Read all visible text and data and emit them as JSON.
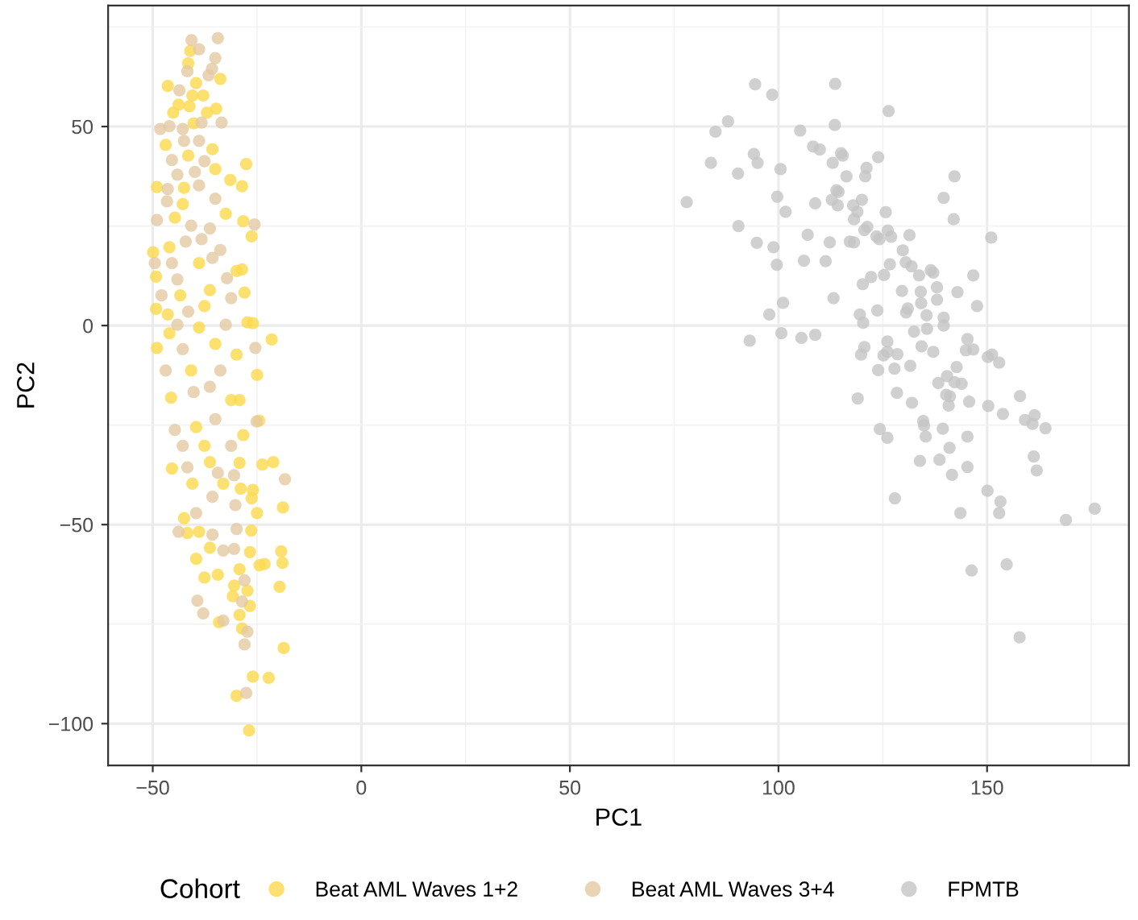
{
  "chart_data": {
    "type": "scatter",
    "xlabel": "PC1",
    "ylabel": "PC2",
    "legend_title": "Cohort",
    "legend": "bottom",
    "grid": true,
    "marker": "circle",
    "xlim": [
      -60.7,
      184
    ],
    "ylim": [
      -110.5,
      80.4
    ],
    "xticks": [
      {
        "value": -50,
        "label": "−50"
      },
      0,
      50,
      100,
      150
    ],
    "yticks": [
      {
        "value": -100,
        "label": "−100"
      },
      {
        "value": -50,
        "label": "−50"
      },
      0,
      50
    ],
    "series": [
      {
        "name": "Beat AML Waves 1+2",
        "color": "#fcd94c",
        "x": [
          -41.0,
          -41.5,
          -33.8,
          -46.4,
          -39.6,
          -37.9,
          -40.5,
          -43.8,
          -45.1,
          -41.2,
          -37.0,
          -34.8,
          -40.2,
          -46.9,
          -35.7,
          -41.5,
          -27.6,
          -35.0,
          -49.0,
          -42.5,
          -31.4,
          -28.6,
          -42.8,
          -32.5,
          -44.7,
          -28.3,
          -26.3,
          -49.9,
          -46.0,
          -38.9,
          -49.2,
          -29.9,
          -28.6,
          -43.4,
          -36.3,
          -28.0,
          -49.2,
          -46.4,
          -37.6,
          -27.3,
          -26.0,
          -21.5,
          -46.0,
          -38.9,
          -49.0,
          -35.0,
          -29.9,
          -40.8,
          -25.0,
          -45.6,
          -31.2,
          -29.2,
          -39.6,
          -28.3,
          -24.5,
          -37.6,
          -45.4,
          -36.3,
          -29.2,
          -23.7,
          -21.1,
          -40.5,
          -33.1,
          -28.9,
          -26.0,
          -26.3,
          -18.8,
          -42.5,
          -25.0,
          -41.7,
          -38.9,
          -26.4,
          -36.3,
          -26.7,
          -19.2,
          -39.6,
          -24.4,
          -23.2,
          -18.9,
          -37.6,
          -34.4,
          -29.2,
          -19.6,
          -30.5,
          -27.3,
          -30.8,
          -26.7,
          -34.1,
          -29.2,
          -28.6,
          -18.6,
          -26.0,
          -22.2,
          -29.9,
          -26.9
        ],
        "values": [
          69.0,
          65.9,
          62.0,
          60.2,
          60.9,
          57.8,
          57.8,
          55.5,
          53.5,
          55.1,
          53.5,
          54.5,
          50.8,
          45.4,
          44.3,
          42.7,
          40.6,
          39.3,
          34.8,
          34.6,
          36.6,
          35.0,
          30.5,
          28.1,
          27.1,
          26.2,
          22.4,
          18.4,
          19.7,
          15.7,
          12.3,
          13.7,
          14.1,
          7.6,
          8.9,
          8.3,
          4.2,
          2.8,
          4.9,
          0.8,
          0.6,
          -3.5,
          -1.9,
          -0.5,
          -5.6,
          -4.6,
          -7.3,
          -11.3,
          -12.4,
          -18.1,
          -18.7,
          -18.7,
          -25.5,
          -27.5,
          -23.9,
          -30.2,
          -35.9,
          -34.3,
          -34.5,
          -34.9,
          -34.3,
          -39.7,
          -39.7,
          -41.0,
          -41.3,
          -43.4,
          -45.7,
          -48.4,
          -47.1,
          -52.1,
          -51.8,
          -51.5,
          -55.8,
          -56.9,
          -56.7,
          -58.6,
          -60.2,
          -59.9,
          -59.6,
          -63.3,
          -62.6,
          -61.2,
          -65.6,
          -65.3,
          -66.6,
          -68.0,
          -70.4,
          -74.5,
          -72.7,
          -76.1,
          -81.0,
          -88.2,
          -88.5,
          -93.0,
          -101.7
        ]
      },
      {
        "name": "Beat AML Waves 3+4",
        "color": "#e3c9a2",
        "x": [
          -40.7,
          -34.4,
          -38.9,
          -35.0,
          -35.8,
          -41.7,
          -36.6,
          -43.6,
          -33.5,
          -48.2,
          -46.0,
          -42.8,
          -38.3,
          -42.5,
          -38.9,
          -45.4,
          -37.6,
          -44.1,
          -39.9,
          -46.4,
          -38.9,
          -46.6,
          -35.0,
          -49.0,
          -40.8,
          -36.3,
          -25.6,
          -42.1,
          -38.3,
          -33.8,
          -49.5,
          -45.4,
          -35.7,
          -44.1,
          -32.2,
          -47.9,
          -31.2,
          -41.5,
          -44.1,
          -32.5,
          -42.8,
          -25.4,
          -46.9,
          -33.8,
          -40.2,
          -36.3,
          -44.7,
          -35.0,
          -25.1,
          -42.8,
          -31.2,
          -41.7,
          -34.4,
          -18.3,
          -30.5,
          -39.6,
          -35.7,
          -30.2,
          -43.8,
          -35.7,
          -29.9,
          -33.1,
          -30.5,
          -28.0,
          -39.3,
          -28.6,
          -37.9,
          -33.1,
          -27.3,
          -28.0,
          -27.6
        ],
        "values": [
          71.7,
          72.2,
          69.4,
          67.2,
          64.5,
          63.9,
          62.9,
          59.1,
          51.0,
          49.4,
          50.1,
          49.4,
          51.0,
          46.4,
          46.4,
          41.6,
          41.3,
          37.9,
          38.6,
          34.3,
          35.2,
          31.2,
          31.9,
          26.5,
          25.1,
          24.4,
          25.4,
          21.1,
          21.7,
          19.0,
          15.7,
          15.7,
          17.0,
          11.6,
          11.9,
          7.6,
          6.9,
          3.5,
          0.2,
          0.2,
          -5.9,
          -5.6,
          -11.3,
          -11.3,
          -16.7,
          -15.4,
          -26.2,
          -23.5,
          -24.1,
          -30.2,
          -30.2,
          -35.6,
          -37.0,
          -38.6,
          -37.6,
          -47.1,
          -43.0,
          -45.1,
          -51.8,
          -52.5,
          -51.1,
          -56.5,
          -56.1,
          -64.0,
          -69.1,
          -69.3,
          -72.3,
          -74.1,
          -76.9,
          -80.1,
          -92.3
        ]
      },
      {
        "name": "FPMTB",
        "color": "#c4c4c4",
        "x": [
          94.4,
          98.5,
          113.6,
          126.4,
          87.9,
          84.9,
          105.2,
          113.5,
          94.1,
          83.8,
          95.0,
          90.3,
          100.5,
          108.3,
          109.9,
          115.0,
          115.4,
          113.0,
          123.9,
          121.1,
          120.8,
          116.3,
          142.2,
          78.0,
          99.7,
          101.7,
          108.8,
          113.9,
          114.4,
          112.8,
          114.2,
          117.9,
          120.0,
          118.9,
          118.1,
          125.7,
          139.6,
          142.0,
          90.4,
          94.8,
          98.8,
          99.6,
          107.0,
          106.1,
          111.3,
          112.3,
          117.1,
          118.1,
          120.6,
          121.3,
          123.5,
          124.2,
          126.2,
          127.0,
          131.4,
          151.0,
          129.8,
          130.5,
          131.9,
          126.7,
          133.7,
          136.5,
          137.1,
          122.2,
          125.3,
          120.2,
          146.7,
          138.0,
          129.6,
          134.1,
          142.9,
          113.2,
          134.2,
          138.0,
          147.6,
          131.0,
          130.6,
          123.7,
          135.5,
          139.6,
          119.5,
          120.3,
          97.8,
          101.1,
          93.1,
          100.7,
          105.5,
          108.8,
          132.5,
          135.6,
          139.6,
          126.1,
          145.3,
          120.6,
          119.8,
          125.2,
          126.1,
          128.5,
          123.9,
          127.8,
          131.6,
          134.3,
          137.1,
          144.9,
          146.7,
          150.2,
          151.2,
          152.9,
          142.7,
          140.4,
          138.3,
          142.2,
          143.9,
          140.2,
          141.1,
          140.8,
          145.7,
          150.3,
          153.8,
          157.9,
          159.1,
          161.4,
          160.9,
          164.0,
          119.0,
          128.4,
          132.0,
          124.3,
          126.1,
          134.7,
          134.9,
          135.3,
          139.4,
          145.3,
          141.0,
          133.9,
          138.6,
          141.6,
          145.3,
          161.2,
          161.9,
          127.9,
          150.1,
          153.2,
          152.9,
          143.6,
          168.9,
          175.8,
          146.3,
          154.7,
          157.8
        ],
        "values": [
          60.6,
          58.0,
          60.7,
          53.9,
          51.3,
          48.7,
          49.0,
          50.4,
          43.1,
          40.9,
          40.9,
          38.2,
          39.3,
          45.0,
          44.2,
          43.3,
          42.7,
          40.9,
          42.3,
          39.6,
          37.5,
          37.5,
          37.5,
          31.0,
          32.4,
          28.6,
          30.7,
          34.0,
          33.6,
          31.6,
          30.2,
          30.2,
          31.6,
          28.6,
          26.7,
          28.5,
          32.1,
          26.7,
          25.0,
          20.8,
          19.7,
          15.3,
          22.8,
          16.3,
          16.2,
          20.9,
          21.1,
          20.9,
          24.0,
          24.8,
          22.4,
          21.7,
          23.9,
          22.3,
          22.7,
          22.1,
          18.9,
          15.9,
          14.9,
          15.4,
          12.6,
          13.9,
          13.3,
          12.2,
          12.7,
          10.4,
          12.6,
          9.6,
          8.7,
          8.5,
          8.4,
          6.9,
          5.6,
          6.5,
          4.9,
          4.3,
          3.3,
          3.8,
          2.6,
          2.0,
          2.8,
          0.7,
          2.8,
          5.7,
          -3.8,
          -1.9,
          -3.1,
          -2.3,
          -1.5,
          -0.8,
          0.0,
          -4.0,
          -3.4,
          -5.4,
          -7.3,
          -7.5,
          -6.6,
          -7.2,
          -11.2,
          -10.8,
          -10.1,
          -5.2,
          -6.6,
          -6.2,
          -6.0,
          -7.9,
          -7.3,
          -9.3,
          -10.4,
          -12.7,
          -14.4,
          -14.2,
          -14.6,
          -17.4,
          -17.8,
          -20.1,
          -19.1,
          -20.2,
          -22.2,
          -17.7,
          -23.7,
          -22.5,
          -24.7,
          -25.8,
          -18.3,
          -16.9,
          -19.4,
          -26.0,
          -28.2,
          -24.0,
          -25.1,
          -27.9,
          -25.9,
          -27.9,
          -30.7,
          -34.0,
          -33.7,
          -37.5,
          -35.5,
          -32.9,
          -36.4,
          -43.4,
          -41.5,
          -44.2,
          -47.1,
          -47.1,
          -48.8,
          -46.0,
          -61.5,
          -60.0,
          -78.3
        ]
      }
    ]
  }
}
